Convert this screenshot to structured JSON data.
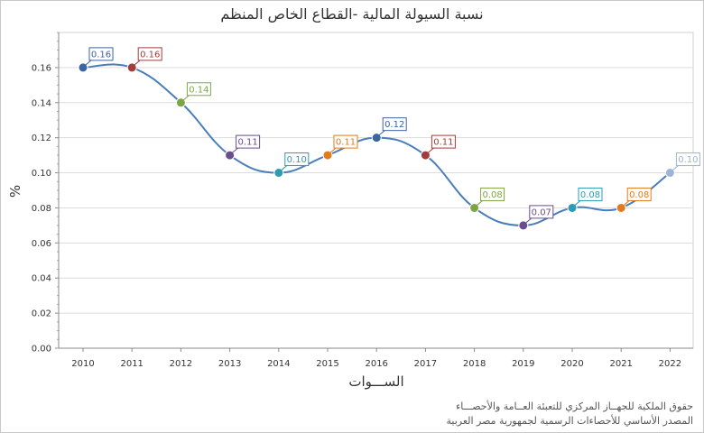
{
  "chart_data": {
    "type": "line",
    "title": "نسبة السيولة المالية -القطاع الخاص المنظم",
    "xlabel": "الســـوات",
    "ylabel": "%",
    "x": [
      "2010",
      "2011",
      "2012",
      "2013",
      "2014",
      "2015",
      "2016",
      "2017",
      "2018",
      "2019",
      "2020",
      "2021",
      "2022"
    ],
    "values": [
      0.16,
      0.16,
      0.14,
      0.11,
      0.1,
      0.11,
      0.12,
      0.11,
      0.08,
      0.07,
      0.08,
      0.08,
      0.1
    ],
    "data_labels": [
      "0.16",
      "0.16",
      "0.14",
      "0.11",
      "0.10",
      "0.11",
      "0.12",
      "0.11",
      "0.08",
      "0.07",
      "0.08",
      "0.08",
      "0.10"
    ],
    "yticks": [
      "0.00",
      "0.02",
      "0.04",
      "0.06",
      "0.08",
      "0.10",
      "0.12",
      "0.14",
      "0.16"
    ],
    "ylim": [
      0,
      0.18
    ],
    "grid": true,
    "line_color": "#4a7ebb",
    "point_colors": [
      "#3a64a2",
      "#a33c3a",
      "#7ea544",
      "#6a4d8c",
      "#2e9bb3",
      "#e07b1e",
      "#3a64a2",
      "#a33c3a",
      "#7ea544",
      "#6a4d8c",
      "#2e9bb3",
      "#e07b1e",
      "#9fb3d6"
    ]
  },
  "source_lines": [
    "حقوق الملكية للجهــاز المركزي للتعبئة العــامة والأحصـــاء",
    "المصدر الأساسي للأحصاءات الرسمية لجمهورية مصر العربية"
  ]
}
